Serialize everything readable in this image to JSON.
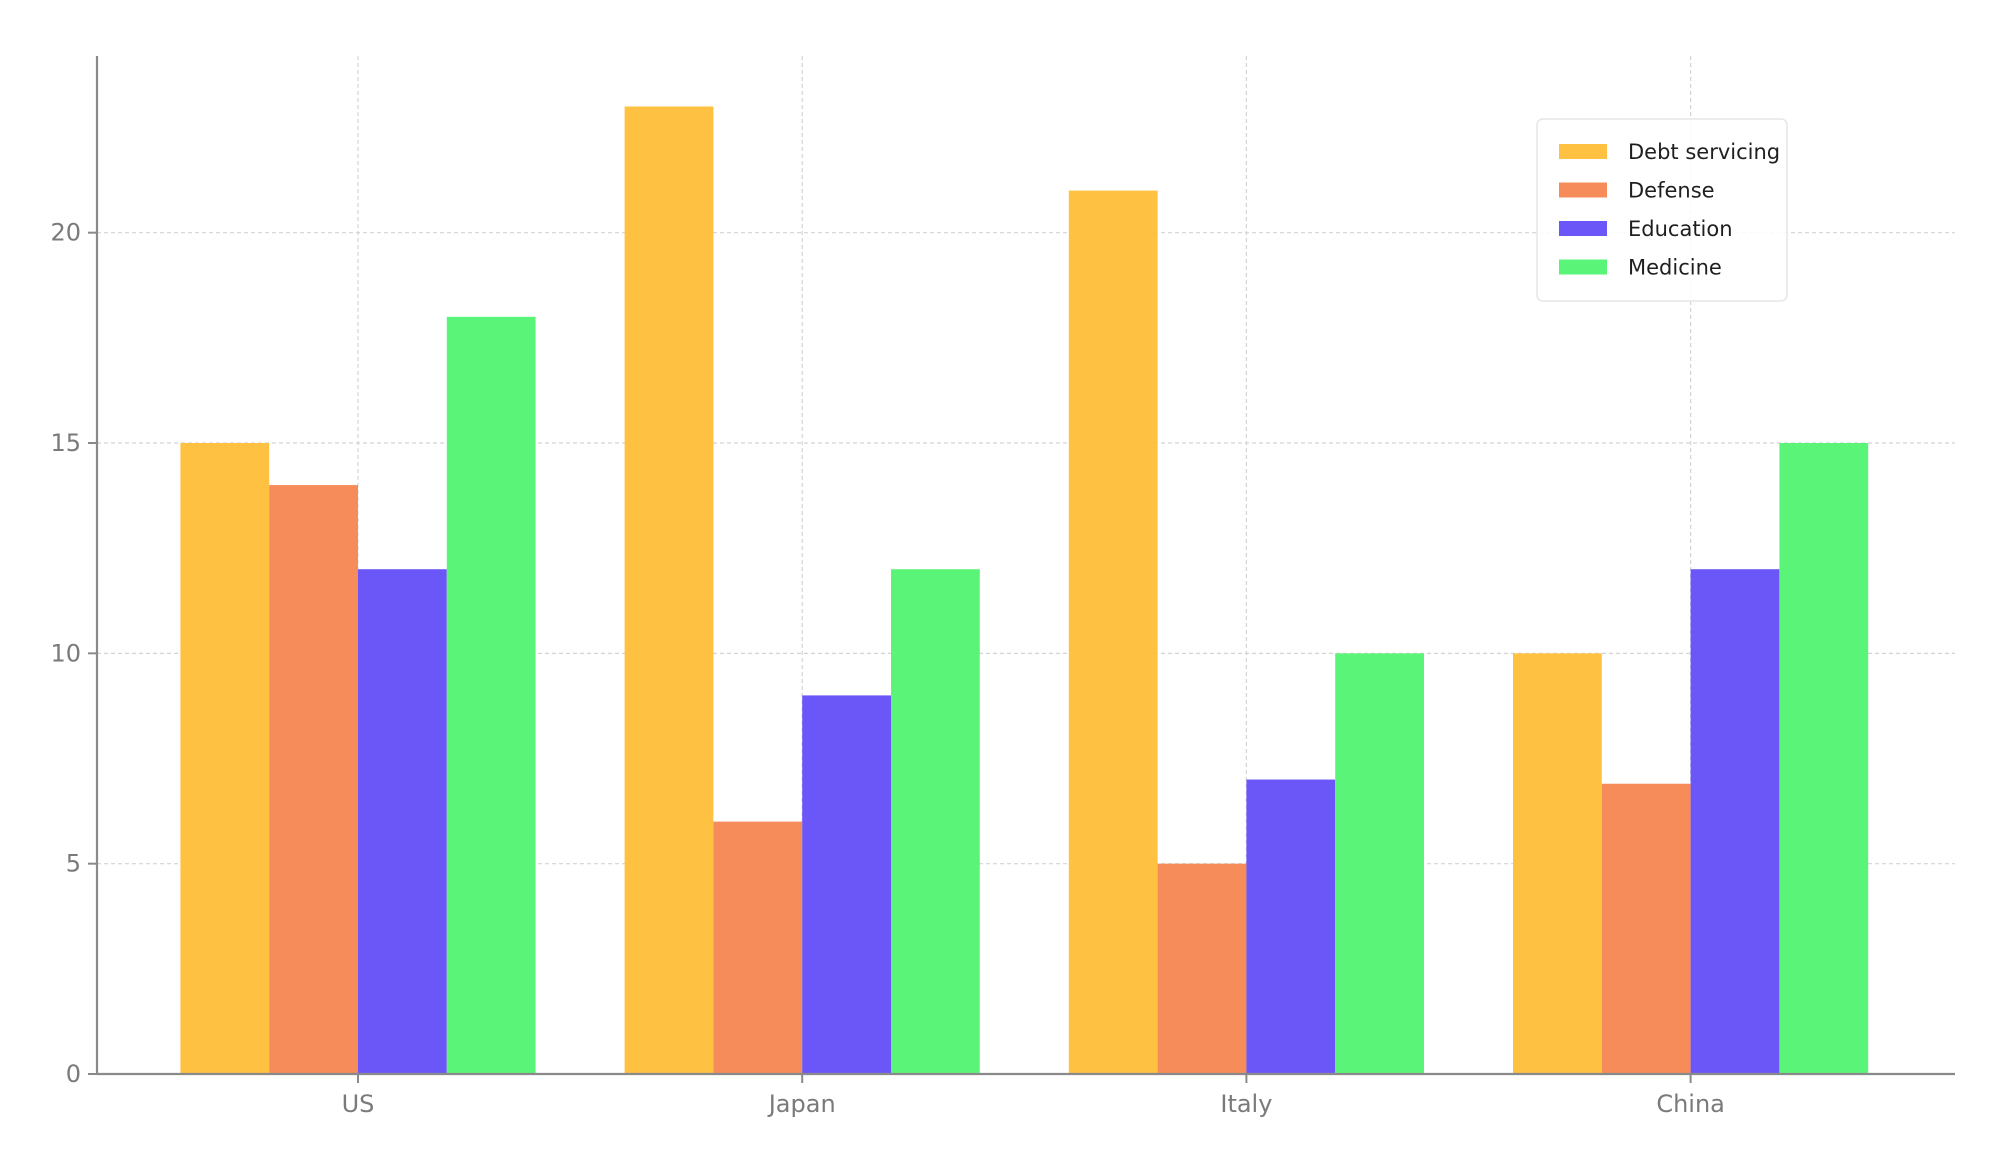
{
  "chart_data": {
    "type": "bar",
    "title": "",
    "xlabel": "",
    "ylabel": "",
    "categories": [
      "US",
      "Japan",
      "Italy",
      "China"
    ],
    "series": [
      {
        "name": "Debt servicing",
        "color": "#FFC142",
        "values": [
          15,
          23,
          21,
          10
        ]
      },
      {
        "name": "Defense",
        "color": "#F78C5B",
        "values": [
          14,
          6,
          5,
          6.9
        ]
      },
      {
        "name": "Education",
        "color": "#6B57F8",
        "values": [
          12,
          9,
          7,
          12
        ]
      },
      {
        "name": "Medicine",
        "color": "#5AF578",
        "values": [
          18,
          12,
          10,
          15
        ]
      }
    ],
    "ylim": [
      0,
      24.2
    ],
    "yticks": [
      0,
      5,
      10,
      15,
      20
    ],
    "grid": true,
    "legend_position": "top-right"
  }
}
